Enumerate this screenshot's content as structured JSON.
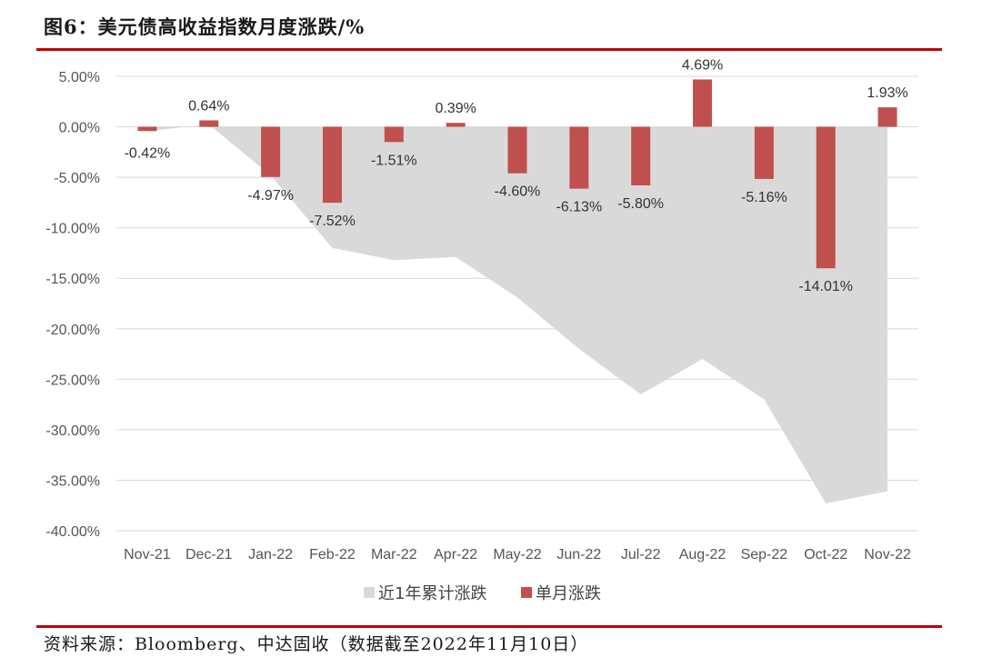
{
  "title": "图6：美元债高收益指数月度涨跌/%",
  "source": "资料来源：Bloomberg、中达固收（数据截至2022年11月10日）",
  "chart_data": {
    "type": "bar",
    "categories": [
      "Nov-21",
      "Dec-21",
      "Jan-22",
      "Feb-22",
      "Mar-22",
      "Apr-22",
      "May-22",
      "Jun-22",
      "Jul-22",
      "Aug-22",
      "Sep-22",
      "Oct-22",
      "Nov-22"
    ],
    "ylim": [
      -40,
      5
    ],
    "yticks": [
      5,
      0,
      -5,
      -10,
      -15,
      -20,
      -25,
      -30,
      -35,
      -40
    ],
    "ytick_labels": [
      "5.00%",
      "0.00%",
      "-5.00%",
      "-10.00%",
      "-15.00%",
      "-20.00%",
      "-25.00%",
      "-30.00%",
      "-35.00%",
      "-40.00%"
    ],
    "series": [
      {
        "name": "近1年累计涨跌",
        "type": "area",
        "color": "#d9d9d9",
        "values": [
          -0.42,
          0.22,
          -4.8,
          -12.0,
          -13.2,
          -12.9,
          -16.9,
          -22.0,
          -26.5,
          -23.0,
          -27.0,
          -37.3,
          -36.1
        ]
      },
      {
        "name": "单月涨跌",
        "type": "bar",
        "color": "#c0504d",
        "values": [
          -0.42,
          0.64,
          -4.97,
          -7.52,
          -1.51,
          0.39,
          -4.6,
          -6.13,
          -5.8,
          4.69,
          -5.16,
          -14.01,
          1.93
        ],
        "labels": [
          "-0.42%",
          "0.64%",
          "-4.97%",
          "-7.52%",
          "-1.51%",
          "0.39%",
          "-4.60%",
          "-6.13%",
          "-5.80%",
          "4.69%",
          "-5.16%",
          "-14.01%",
          "1.93%"
        ]
      }
    ],
    "legend": "bottom"
  }
}
